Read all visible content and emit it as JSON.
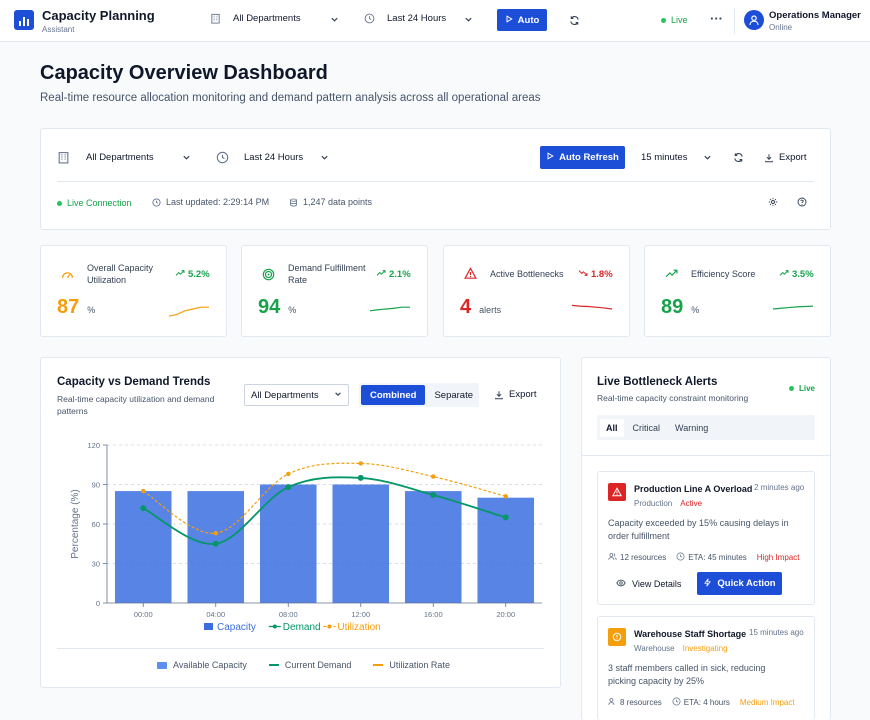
{
  "brand": {
    "title": "Capacity Planning",
    "subtitle": "Assistant"
  },
  "topbar": {
    "department": "All Departments",
    "time_range": "Last 24 Hours",
    "auto_label": "Auto",
    "live_label": "Live",
    "user_name": "Operations Manager",
    "user_status": "Online"
  },
  "page": {
    "title": "Capacity Overview Dashboard",
    "subtitle": "Real-time resource allocation monitoring and demand pattern analysis across all operational areas"
  },
  "controls": {
    "department": "All Departments",
    "time_range": "Last 24 Hours",
    "auto_refresh": "Auto Refresh",
    "interval": "15 minutes",
    "export": "Export",
    "live_connection": "Live Connection",
    "last_updated": "Last updated: 2:29:14 PM",
    "data_points": "1,247 data points"
  },
  "metrics": [
    {
      "label_line1": "Overall Capacity",
      "label_line2": "Utilization",
      "trend": "5.2%",
      "trend_dir": "up",
      "value": "87",
      "unit": "%",
      "color": "#f59e0b",
      "spark": [
        0.3,
        0.35,
        0.45,
        0.5,
        0.55,
        0.55
      ]
    },
    {
      "label_line1": "Demand Fulfillment",
      "label_line2": "Rate",
      "trend": "2.1%",
      "trend_dir": "up",
      "value": "94",
      "unit": "%",
      "color": "#16a34a",
      "spark": [
        0.45,
        0.48,
        0.5,
        0.52,
        0.55,
        0.55
      ]
    },
    {
      "label_line1": "Active Bottlenecks",
      "label_line2": "",
      "trend": "1.8%",
      "trend_dir": "down",
      "value": "4",
      "unit": "alerts",
      "color": "#dc2626",
      "spark": [
        0.6,
        0.58,
        0.57,
        0.55,
        0.53,
        0.5
      ]
    },
    {
      "label_line1": "Efficiency Score",
      "label_line2": "",
      "trend": "3.5%",
      "trend_dir": "up",
      "value": "89",
      "unit": "%",
      "color": "#16a34a",
      "spark": [
        0.5,
        0.52,
        0.54,
        0.56,
        0.57,
        0.58
      ]
    }
  ],
  "trends_panel": {
    "title": "Capacity vs Demand Trends",
    "subtitle_line1": "Real-time capacity utilization and demand",
    "subtitle_line2": "patterns",
    "department": "All Departments",
    "view_combined": "Combined",
    "view_separate": "Separate",
    "export": "Export",
    "footer_legend": [
      "Available Capacity",
      "Current Demand",
      "Utilization Rate"
    ]
  },
  "chart_data": {
    "type": "bar",
    "categories": [
      "00:00",
      "04:00",
      "08:00",
      "12:00",
      "16:00",
      "20:00"
    ],
    "series": [
      {
        "name": "Capacity",
        "type": "bar",
        "values": [
          85,
          85,
          90,
          90,
          85,
          80
        ],
        "color": "#3b6fe0"
      },
      {
        "name": "Demand",
        "type": "line",
        "values": [
          72,
          45,
          88,
          95,
          82,
          65
        ],
        "color": "#059669"
      },
      {
        "name": "Utilization",
        "type": "line",
        "dashed": true,
        "values": [
          85,
          53,
          98,
          106,
          96,
          81
        ],
        "color": "#f59e0b"
      }
    ],
    "ylabel": "Percentage (%)",
    "yticks": [
      "0",
      "30",
      "60",
      "90",
      "120"
    ],
    "ylim": [
      0,
      120
    ],
    "grid": true,
    "legend_position": "bottom"
  },
  "alerts_panel": {
    "title": "Live Bottleneck Alerts",
    "subtitle": "Real-time capacity constraint monitoring",
    "live": "Live",
    "tabs": [
      "All",
      "Critical",
      "Warning"
    ],
    "alerts": [
      {
        "title": "Production Line A Overload",
        "time": "2 minutes ago",
        "area": "Production",
        "status": "Active",
        "desc_line1": "Capacity exceeded by 15% causing delays in",
        "desc_line2": "order fulfillment",
        "resources": "12 resources",
        "eta": "ETA: 45 minutes",
        "impact": "High Impact",
        "view": "View Details",
        "action": "Quick Action",
        "color": "#dc2626"
      },
      {
        "title": "Warehouse Staff Shortage",
        "time": "15 minutes ago",
        "area": "Warehouse",
        "status": "Investigating",
        "desc_line1": "3 staff members called in sick, reducing",
        "desc_line2": "picking capacity by 25%",
        "resources": "8 resources",
        "eta": "ETA: 4 hours",
        "impact": "Medium Impact",
        "color": "#f59e0b"
      }
    ]
  }
}
